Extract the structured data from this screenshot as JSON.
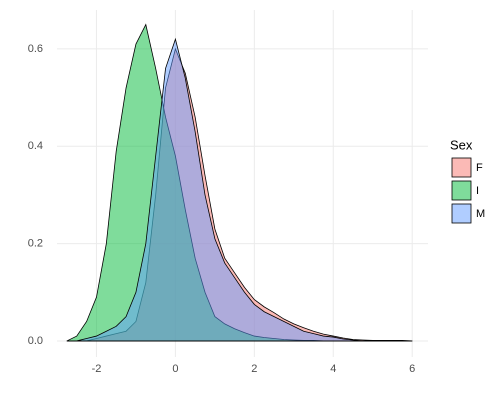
{
  "chart_data": {
    "type": "density",
    "x": [
      -2.75,
      -2.5,
      -2.25,
      -2,
      -1.75,
      -1.5,
      -1.25,
      -1,
      -0.75,
      -0.5,
      -0.25,
      0,
      0.25,
      0.5,
      0.75,
      1,
      1.25,
      1.5,
      1.75,
      2,
      2.25,
      2.5,
      2.75,
      3,
      3.25,
      3.5,
      3.75,
      4,
      4.25,
      4.5,
      4.75,
      5,
      5.25,
      5.5,
      5.75,
      6
    ],
    "series": [
      {
        "name": "F",
        "color": "#F8766D",
        "values": [
          0,
          0,
          0,
          0.005,
          0.01,
          0.015,
          0.02,
          0.04,
          0.12,
          0.3,
          0.52,
          0.6,
          0.55,
          0.46,
          0.34,
          0.23,
          0.17,
          0.14,
          0.11,
          0.085,
          0.07,
          0.058,
          0.045,
          0.035,
          0.027,
          0.02,
          0.014,
          0.01,
          0.006,
          0.003,
          0.002,
          0.001,
          0.001,
          0.001,
          0.001,
          0
        ]
      },
      {
        "name": "I",
        "color": "#00BA38",
        "values": [
          0,
          0.01,
          0.04,
          0.09,
          0.2,
          0.39,
          0.52,
          0.61,
          0.65,
          0.56,
          0.46,
          0.38,
          0.27,
          0.17,
          0.1,
          0.05,
          0.035,
          0.025,
          0.017,
          0.01,
          0.007,
          0.005,
          0.003,
          0.002,
          0.001,
          0.001,
          0,
          0,
          0,
          0,
          0,
          0,
          0,
          0,
          0,
          0
        ]
      },
      {
        "name": "M",
        "color": "#619CFF",
        "values": [
          0,
          0,
          0.005,
          0.01,
          0.02,
          0.03,
          0.05,
          0.1,
          0.2,
          0.38,
          0.56,
          0.62,
          0.54,
          0.43,
          0.3,
          0.21,
          0.16,
          0.13,
          0.1,
          0.075,
          0.06,
          0.05,
          0.04,
          0.03,
          0.02,
          0.015,
          0.01,
          0.008,
          0.004,
          0.002,
          0,
          0,
          0,
          0,
          0,
          0
        ]
      }
    ],
    "xlim": [
      -3,
      6.4
    ],
    "xticks": [
      -2,
      0,
      2,
      4,
      6
    ],
    "ylim": [
      -0.033,
      0.68
    ],
    "yticks": [
      {
        "value": 0,
        "label": "0.0"
      },
      0.2,
      0.4,
      0.6
    ],
    "grid": true,
    "legend_title": "Sex",
    "legend_position": "right"
  }
}
